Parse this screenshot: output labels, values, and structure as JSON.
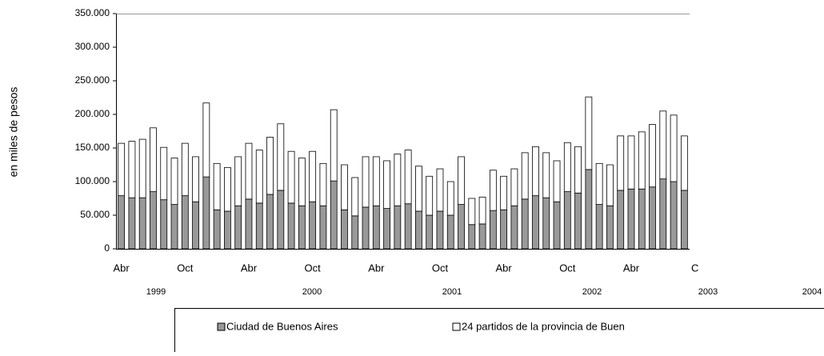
{
  "chart_data": {
    "type": "stacked-bar",
    "y_axis_label": "en miles de pesos",
    "categories": [
      "Abr",
      null,
      null,
      null,
      null,
      null,
      "Oct",
      null,
      null,
      null,
      null,
      null,
      "Abr",
      null,
      null,
      null,
      null,
      null,
      "Oct",
      null,
      null,
      null,
      null,
      null,
      "Abr",
      null,
      null,
      null,
      null,
      null,
      "Oct",
      null,
      null,
      null,
      null,
      null,
      "Abr",
      null,
      null,
      null,
      null,
      null,
      "Oct",
      null,
      null,
      null,
      null,
      null,
      "Abr",
      null,
      null,
      null,
      null,
      null,
      "C"
    ],
    "year_labels": [
      "1999",
      "2000",
      "2001",
      "2002",
      "2003",
      "2004"
    ],
    "series": [
      {
        "name": "Ciudad de Buenos Aires",
        "color": "#999999",
        "values": [
          79000,
          76000,
          76000,
          85000,
          73000,
          66000,
          79000,
          70000,
          107000,
          58000,
          56000,
          64000,
          74000,
          68000,
          81000,
          87000,
          68000,
          64000,
          70000,
          64000,
          101000,
          58000,
          49000,
          62000,
          64000,
          60000,
          64000,
          67000,
          56000,
          50000,
          56000,
          50000,
          66000,
          36000,
          37000,
          57000,
          58000,
          64000,
          74000,
          79000,
          76000,
          70000,
          85000,
          83000,
          118000,
          66000,
          64000,
          87000,
          89000,
          89000,
          92000,
          104000,
          100000,
          87000,
          null
        ]
      },
      {
        "name": "24 partidos de la provincia de Buen",
        "color": "#ffffff",
        "values": [
          78000,
          84000,
          87000,
          95000,
          78000,
          69000,
          78000,
          67000,
          110000,
          69000,
          65000,
          73000,
          83000,
          79000,
          85000,
          99000,
          77000,
          71000,
          75000,
          63000,
          106000,
          67000,
          57000,
          75000,
          73000,
          71000,
          77000,
          80000,
          67000,
          58000,
          63000,
          50000,
          71000,
          39000,
          40000,
          60000,
          50000,
          55000,
          69000,
          73000,
          67000,
          61000,
          73000,
          69000,
          108000,
          61000,
          61000,
          81000,
          79000,
          85000,
          93000,
          101000,
          99000,
          81000,
          null
        ]
      }
    ],
    "ylim": [
      0,
      350000
    ],
    "yticks": [
      0,
      {
        "value": 50000,
        "label": "50.000"
      },
      {
        "value": 100000,
        "label": "100.000"
      },
      {
        "value": 150000,
        "label": "150.000"
      },
      {
        "value": 200000,
        "label": "200.000"
      },
      {
        "value": 250000,
        "label": "250.000"
      },
      {
        "value": 300000,
        "label": "300.000"
      },
      {
        "value": 350000,
        "label": "350.000"
      }
    ]
  }
}
